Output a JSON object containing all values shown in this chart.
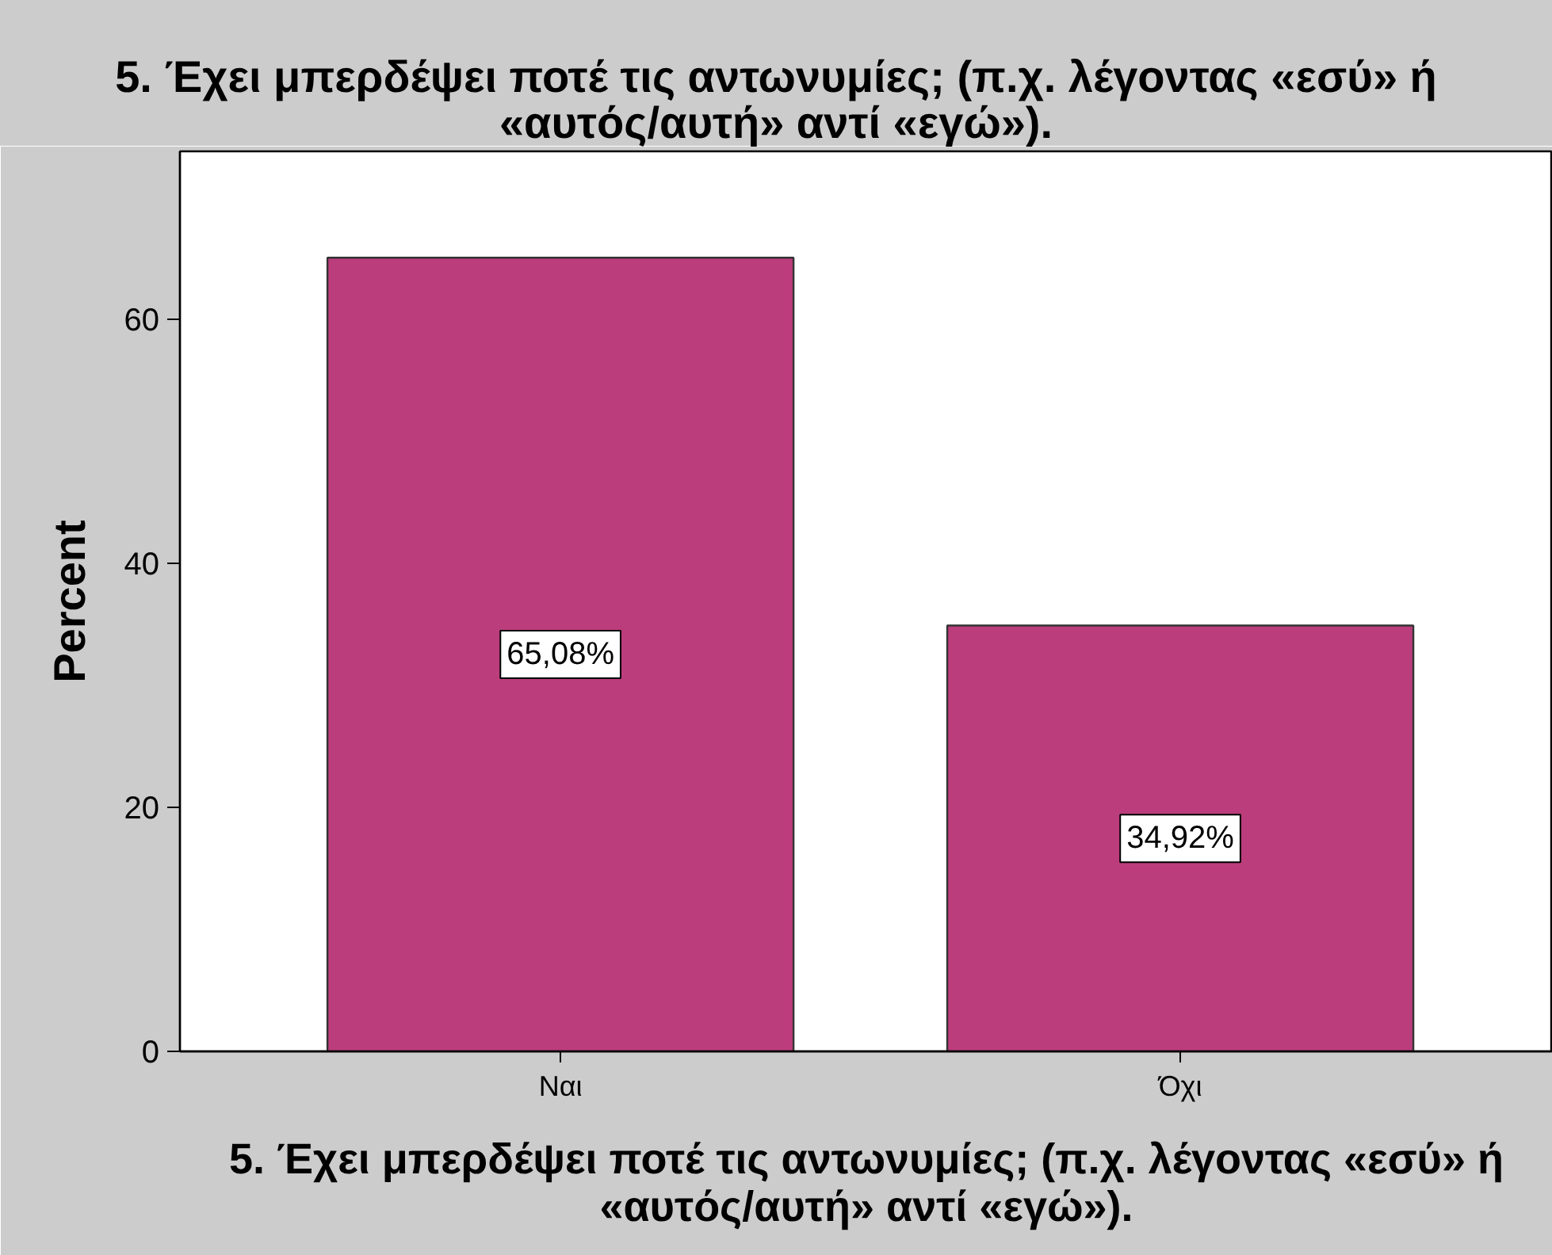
{
  "chart_data": {
    "type": "bar",
    "title": "5. Έχει μπερδέψει ποτέ τις αντωνυμίες; (π.χ. λέγοντας «εσύ» ή «αυτός/αυτή» αντί «εγώ»).",
    "xlabel": "5. Έχει μπερδέψει ποτέ τις αντωνυμίες; (π.χ. λέγοντας «εσύ» ή «αυτός/αυτή» αντί «εγώ»).",
    "ylabel": "Percent",
    "categories": [
      "Ναι",
      "Όχι"
    ],
    "values": [
      65.08,
      34.92
    ],
    "color": "#bb3d7c",
    "value_labels": [
      "65,08%",
      "34,92%"
    ],
    "ylim": [
      0,
      73.8
    ],
    "yticks": [
      0,
      20,
      40,
      60
    ],
    "grid": false
  }
}
